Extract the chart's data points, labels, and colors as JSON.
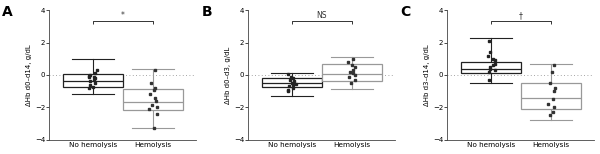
{
  "panels": [
    {
      "label": "A",
      "ylabel": "ΔHb d0–d14, g/dL",
      "sig": "*",
      "ylim": [
        -4,
        4
      ],
      "yticks": [
        -4,
        -2,
        0,
        2,
        4
      ],
      "groups": [
        {
          "name": "No hemolysis",
          "edge_color": "#222222",
          "pt_color": "#222222",
          "pt_marker": "s",
          "median": -0.35,
          "q1": -0.75,
          "q3": 0.05,
          "whisker_low": -1.2,
          "whisker_high": 1.0,
          "points": [
            0.1,
            -0.05,
            -0.3,
            -0.5,
            -0.75,
            -0.4,
            -0.6,
            -0.2,
            0.0,
            -0.8,
            -0.1,
            0.3,
            -0.15
          ]
        },
        {
          "name": "Hemolysis",
          "edge_color": "#999999",
          "pt_color": "#333333",
          "pt_marker": "s",
          "median": -1.7,
          "q1": -2.15,
          "q3": -0.85,
          "whisker_low": -3.3,
          "whisker_high": 0.35,
          "points": [
            -0.8,
            -1.2,
            -1.6,
            -2.0,
            -2.4,
            -1.85,
            -0.9,
            -1.4,
            -3.25,
            0.3,
            -2.1,
            -0.5
          ]
        }
      ]
    },
    {
      "label": "B",
      "ylabel": "ΔHb d0–d3, g/dL",
      "sig": "NS",
      "ylim": [
        -4,
        4
      ],
      "yticks": [
        -4,
        -2,
        0,
        2,
        4
      ],
      "groups": [
        {
          "name": "No hemolysis",
          "edge_color": "#222222",
          "pt_color": "#222222",
          "pt_marker": "s",
          "median": -0.5,
          "q1": -0.75,
          "q3": -0.2,
          "whisker_low": -1.3,
          "whisker_high": 0.1,
          "points": [
            -0.3,
            -0.5,
            -0.7,
            -0.9,
            -0.4,
            -0.6,
            -0.2,
            -0.8,
            -1.0,
            -0.15,
            -0.55,
            0.05
          ]
        },
        {
          "name": "Hemolysis",
          "edge_color": "#999999",
          "pt_color": "#333333",
          "pt_marker": "s",
          "median": 0.05,
          "q1": -0.35,
          "q3": 0.65,
          "whisker_low": -0.85,
          "whisker_high": 1.1,
          "points": [
            0.3,
            0.0,
            0.5,
            -0.3,
            0.8,
            0.1,
            -0.5,
            0.6,
            1.0,
            -0.1,
            0.2
          ]
        }
      ]
    },
    {
      "label": "C",
      "ylabel": "ΔHb d3–d14, g/dL",
      "sig": "†",
      "ylim": [
        -4,
        4
      ],
      "yticks": [
        -4,
        -2,
        0,
        2,
        4
      ],
      "groups": [
        {
          "name": "No hemolysis",
          "edge_color": "#222222",
          "pt_color": "#222222",
          "pt_marker": "s",
          "median": 0.4,
          "q1": 0.1,
          "q3": 0.8,
          "whisker_low": -0.5,
          "whisker_high": 2.3,
          "points": [
            0.3,
            0.6,
            0.9,
            0.2,
            0.5,
            1.0,
            0.7,
            -0.3,
            1.2,
            0.4,
            2.1,
            1.4
          ]
        },
        {
          "name": "Hemolysis",
          "edge_color": "#999999",
          "pt_color": "#333333",
          "pt_marker": "s",
          "median": -1.45,
          "q1": -2.1,
          "q3": -0.5,
          "whisker_low": -2.8,
          "whisker_high": 0.65,
          "points": [
            -0.5,
            -1.0,
            -1.5,
            -2.0,
            -2.5,
            -0.8,
            0.6,
            -1.8,
            -2.3,
            0.2
          ]
        }
      ]
    }
  ],
  "bg_color": "#ffffff",
  "box_width": 0.55,
  "positions": [
    0.3,
    0.85
  ]
}
